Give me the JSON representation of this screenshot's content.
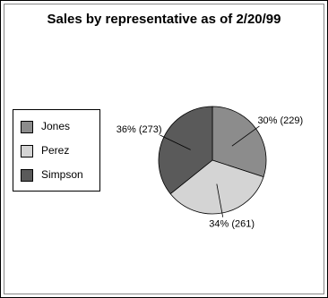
{
  "chart_data": {
    "type": "pie",
    "title": "Sales by representative as of 2/20/99",
    "categories": [
      "Jones",
      "Perez",
      "Simpson"
    ],
    "values": [
      229,
      261,
      273
    ],
    "value_labels": [
      "30% (229)",
      "34% (261)",
      "36% (273)"
    ],
    "colors": [
      "#8c8c8c",
      "#d4d4d4",
      "#5a5a5a"
    ],
    "legend": "left"
  }
}
